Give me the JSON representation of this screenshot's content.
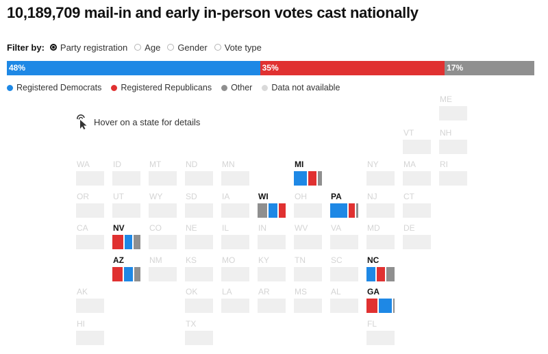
{
  "title": "10,189,709 mail-in and early in-person votes cast nationally",
  "filter": {
    "label": "Filter by:",
    "options": [
      {
        "label": "Party registration",
        "selected": true
      },
      {
        "label": "Age",
        "selected": false
      },
      {
        "label": "Gender",
        "selected": false
      },
      {
        "label": "Vote type",
        "selected": false
      }
    ]
  },
  "colors": {
    "dem": "#1e88e5",
    "rep": "#e03131",
    "other": "#8f8f8f",
    "na": "#d9d9d9",
    "empty": "#efefef"
  },
  "chart_data": {
    "type": "bar",
    "title": "10,189,709 mail-in and early in-person votes cast nationally",
    "national": [
      {
        "key": "dem",
        "label": "48%",
        "value": 48
      },
      {
        "key": "rep",
        "label": "35%",
        "value": 35
      },
      {
        "key": "other",
        "label": "17%",
        "value": 17
      }
    ],
    "legend": [
      {
        "key": "dem",
        "label": "Registered Democrats"
      },
      {
        "key": "rep",
        "label": "Registered Republicans"
      },
      {
        "key": "other",
        "label": "Other"
      },
      {
        "key": "na",
        "label": "Data not available"
      }
    ],
    "states": [
      {
        "abbr": "ME",
        "col": 10,
        "row": 0
      },
      {
        "abbr": "VT",
        "col": 9,
        "row": 1
      },
      {
        "abbr": "NH",
        "col": 10,
        "row": 1
      },
      {
        "abbr": "WA",
        "col": 0,
        "row": 2
      },
      {
        "abbr": "ID",
        "col": 1,
        "row": 2
      },
      {
        "abbr": "MT",
        "col": 2,
        "row": 2
      },
      {
        "abbr": "ND",
        "col": 3,
        "row": 2
      },
      {
        "abbr": "MN",
        "col": 4,
        "row": 2
      },
      {
        "abbr": "MI",
        "col": 6,
        "row": 2,
        "segments": [
          {
            "key": "dem",
            "value": 50
          },
          {
            "key": "rep",
            "value": 35
          },
          {
            "key": "other",
            "value": 15
          }
        ]
      },
      {
        "abbr": "NY",
        "col": 8,
        "row": 2
      },
      {
        "abbr": "MA",
        "col": 9,
        "row": 2
      },
      {
        "abbr": "RI",
        "col": 10,
        "row": 2
      },
      {
        "abbr": "OR",
        "col": 0,
        "row": 3
      },
      {
        "abbr": "UT",
        "col": 1,
        "row": 3
      },
      {
        "abbr": "WY",
        "col": 2,
        "row": 3
      },
      {
        "abbr": "SD",
        "col": 3,
        "row": 3
      },
      {
        "abbr": "IA",
        "col": 4,
        "row": 3
      },
      {
        "abbr": "WI",
        "col": 5,
        "row": 3,
        "segments": [
          {
            "key": "other",
            "value": 40
          },
          {
            "key": "dem",
            "value": 35
          },
          {
            "key": "rep",
            "value": 25
          }
        ]
      },
      {
        "abbr": "OH",
        "col": 6,
        "row": 3
      },
      {
        "abbr": "PA",
        "col": 7,
        "row": 3,
        "segments": [
          {
            "key": "dem",
            "value": 65
          },
          {
            "key": "rep",
            "value": 27
          },
          {
            "key": "other",
            "value": 8
          }
        ]
      },
      {
        "abbr": "NJ",
        "col": 8,
        "row": 3
      },
      {
        "abbr": "CT",
        "col": 9,
        "row": 3
      },
      {
        "abbr": "CA",
        "col": 0,
        "row": 4
      },
      {
        "abbr": "NV",
        "col": 1,
        "row": 4,
        "segments": [
          {
            "key": "rep",
            "value": 45
          },
          {
            "key": "dem",
            "value": 30
          },
          {
            "key": "other",
            "value": 25
          }
        ]
      },
      {
        "abbr": "CO",
        "col": 2,
        "row": 4
      },
      {
        "abbr": "NE",
        "col": 3,
        "row": 4
      },
      {
        "abbr": "IL",
        "col": 4,
        "row": 4
      },
      {
        "abbr": "IN",
        "col": 5,
        "row": 4
      },
      {
        "abbr": "WV",
        "col": 6,
        "row": 4
      },
      {
        "abbr": "VA",
        "col": 7,
        "row": 4
      },
      {
        "abbr": "MD",
        "col": 8,
        "row": 4
      },
      {
        "abbr": "DE",
        "col": 9,
        "row": 4
      },
      {
        "abbr": "AZ",
        "col": 1,
        "row": 5,
        "segments": [
          {
            "key": "rep",
            "value": 42
          },
          {
            "key": "dem",
            "value": 37
          },
          {
            "key": "other",
            "value": 21
          }
        ]
      },
      {
        "abbr": "NM",
        "col": 2,
        "row": 5
      },
      {
        "abbr": "KS",
        "col": 3,
        "row": 5
      },
      {
        "abbr": "MO",
        "col": 4,
        "row": 5
      },
      {
        "abbr": "KY",
        "col": 5,
        "row": 5
      },
      {
        "abbr": "TN",
        "col": 6,
        "row": 5
      },
      {
        "abbr": "SC",
        "col": 7,
        "row": 5
      },
      {
        "abbr": "NC",
        "col": 8,
        "row": 5,
        "segments": [
          {
            "key": "dem",
            "value": 36
          },
          {
            "key": "rep",
            "value": 34
          },
          {
            "key": "other",
            "value": 30
          }
        ]
      },
      {
        "abbr": "AK",
        "col": 0,
        "row": 6
      },
      {
        "abbr": "OK",
        "col": 3,
        "row": 6
      },
      {
        "abbr": "LA",
        "col": 4,
        "row": 6
      },
      {
        "abbr": "AR",
        "col": 5,
        "row": 6
      },
      {
        "abbr": "MS",
        "col": 6,
        "row": 6
      },
      {
        "abbr": "AL",
        "col": 7,
        "row": 6
      },
      {
        "abbr": "GA",
        "col": 8,
        "row": 6,
        "segments": [
          {
            "key": "rep",
            "value": 45
          },
          {
            "key": "dem",
            "value": 50
          },
          {
            "key": "other",
            "value": 5
          }
        ]
      },
      {
        "abbr": "HI",
        "col": 0,
        "row": 7
      },
      {
        "abbr": "TX",
        "col": 3,
        "row": 7
      },
      {
        "abbr": "FL",
        "col": 8,
        "row": 7
      }
    ]
  },
  "hover_hint": "Hover on a state for details",
  "icons": {
    "hover": "pointer-click-icon"
  }
}
